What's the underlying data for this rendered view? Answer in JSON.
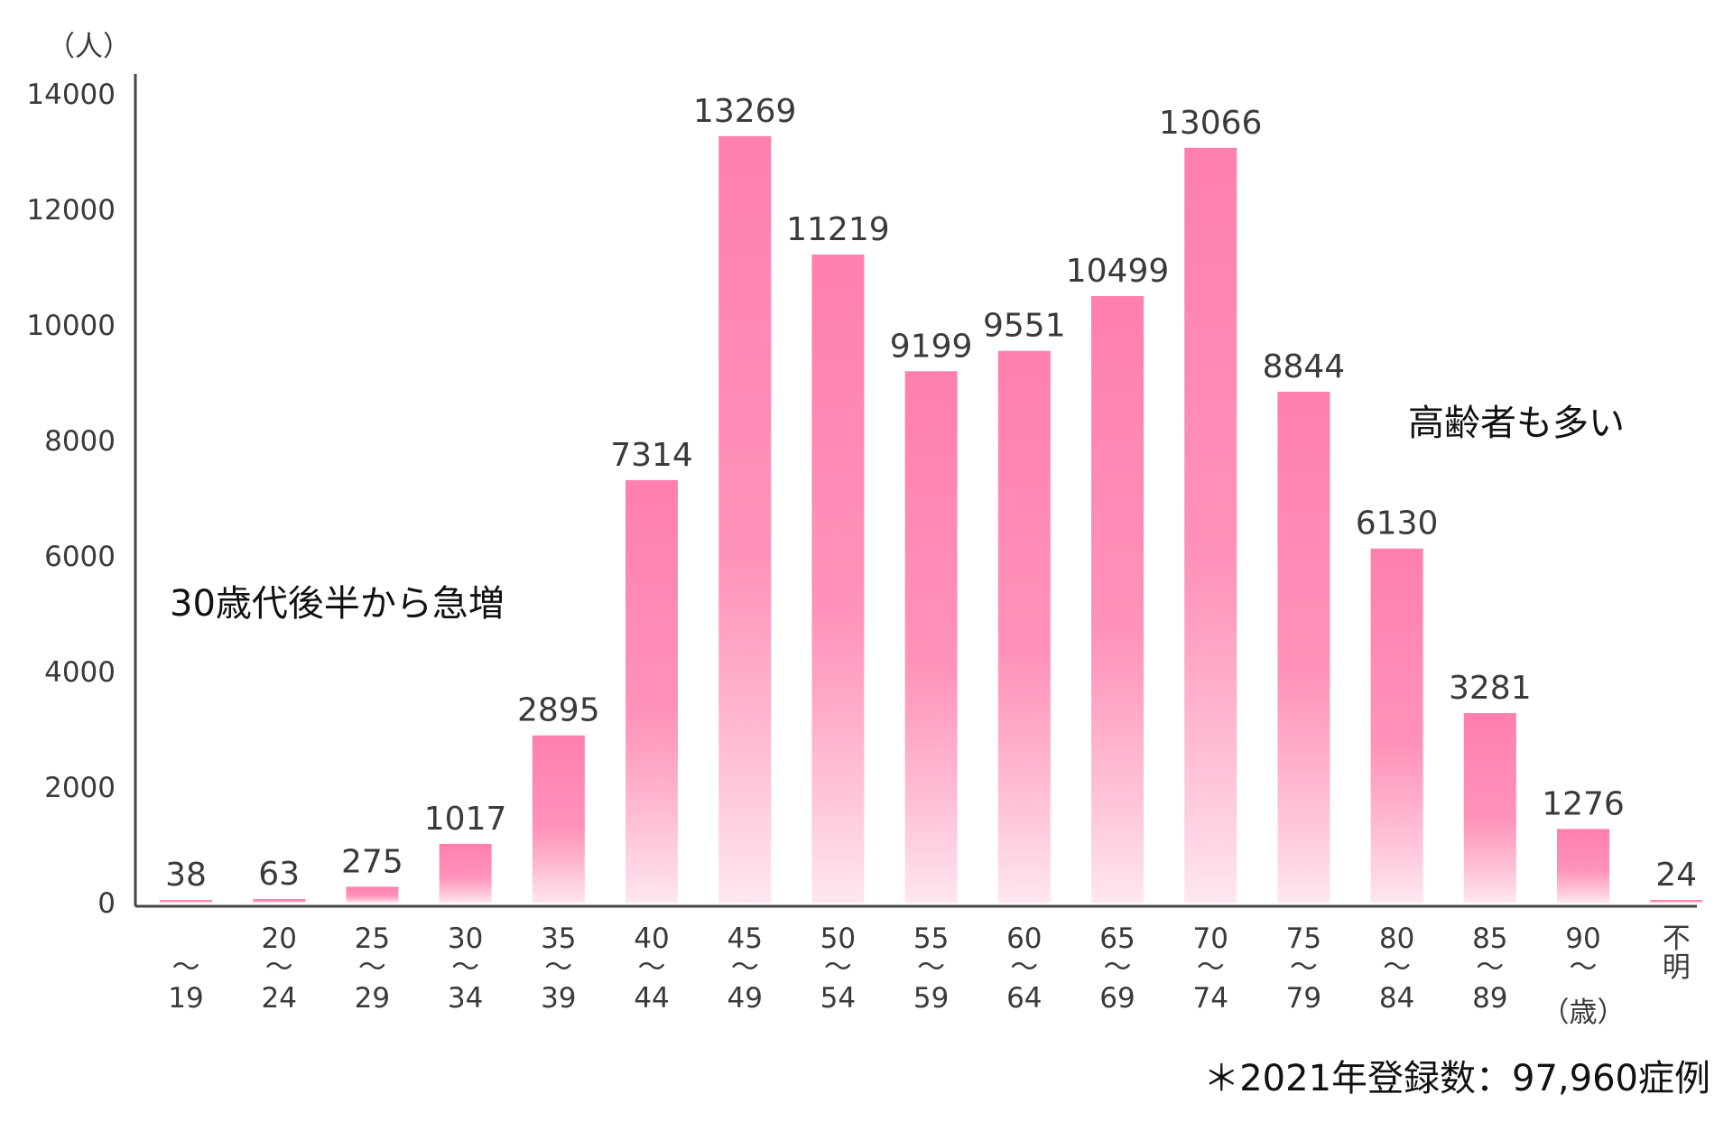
{
  "chart_data": {
    "type": "bar",
    "y_unit_label": "（人）",
    "y_ticks": [
      "0",
      "2000",
      "4000",
      "6000",
      "8000",
      "10000",
      "12000",
      "14000"
    ],
    "ylim": [
      0,
      14000
    ],
    "categories": [
      [
        "",
        "〜",
        "19"
      ],
      [
        "20",
        "〜",
        "24"
      ],
      [
        "25",
        "〜",
        "29"
      ],
      [
        "30",
        "〜",
        "34"
      ],
      [
        "35",
        "〜",
        "39"
      ],
      [
        "40",
        "〜",
        "44"
      ],
      [
        "45",
        "〜",
        "49"
      ],
      [
        "50",
        "〜",
        "54"
      ],
      [
        "55",
        "〜",
        "59"
      ],
      [
        "60",
        "〜",
        "64"
      ],
      [
        "65",
        "〜",
        "69"
      ],
      [
        "70",
        "〜",
        "74"
      ],
      [
        "75",
        "〜",
        "79"
      ],
      [
        "80",
        "〜",
        "84"
      ],
      [
        "85",
        "〜",
        "89"
      ],
      [
        "90",
        "〜",
        "（歳）"
      ],
      [
        "不",
        "明",
        ""
      ]
    ],
    "values": [
      38,
      63,
      275,
      1017,
      2895,
      7314,
      13269,
      11219,
      9199,
      9551,
      10499,
      13066,
      8844,
      6130,
      3281,
      1276,
      24
    ],
    "value_labels": [
      "38",
      "63",
      "275",
      "1017",
      "2895",
      "7314",
      "13269",
      "11219",
      "9199",
      "9551",
      "10499",
      "13066",
      "8844",
      "6130",
      "3281",
      "1276",
      "24"
    ],
    "annotations": [
      "30歳代後半から急増",
      "高齢者も多い"
    ],
    "footnote": "＊2021年登録数：97,960症例",
    "grid": false,
    "legend": "none"
  },
  "colors": {
    "bar_top": "#ff7fae",
    "bar_bottom": "#ffe7f0",
    "axis": "#444444",
    "text": "#3a3a3a"
  }
}
